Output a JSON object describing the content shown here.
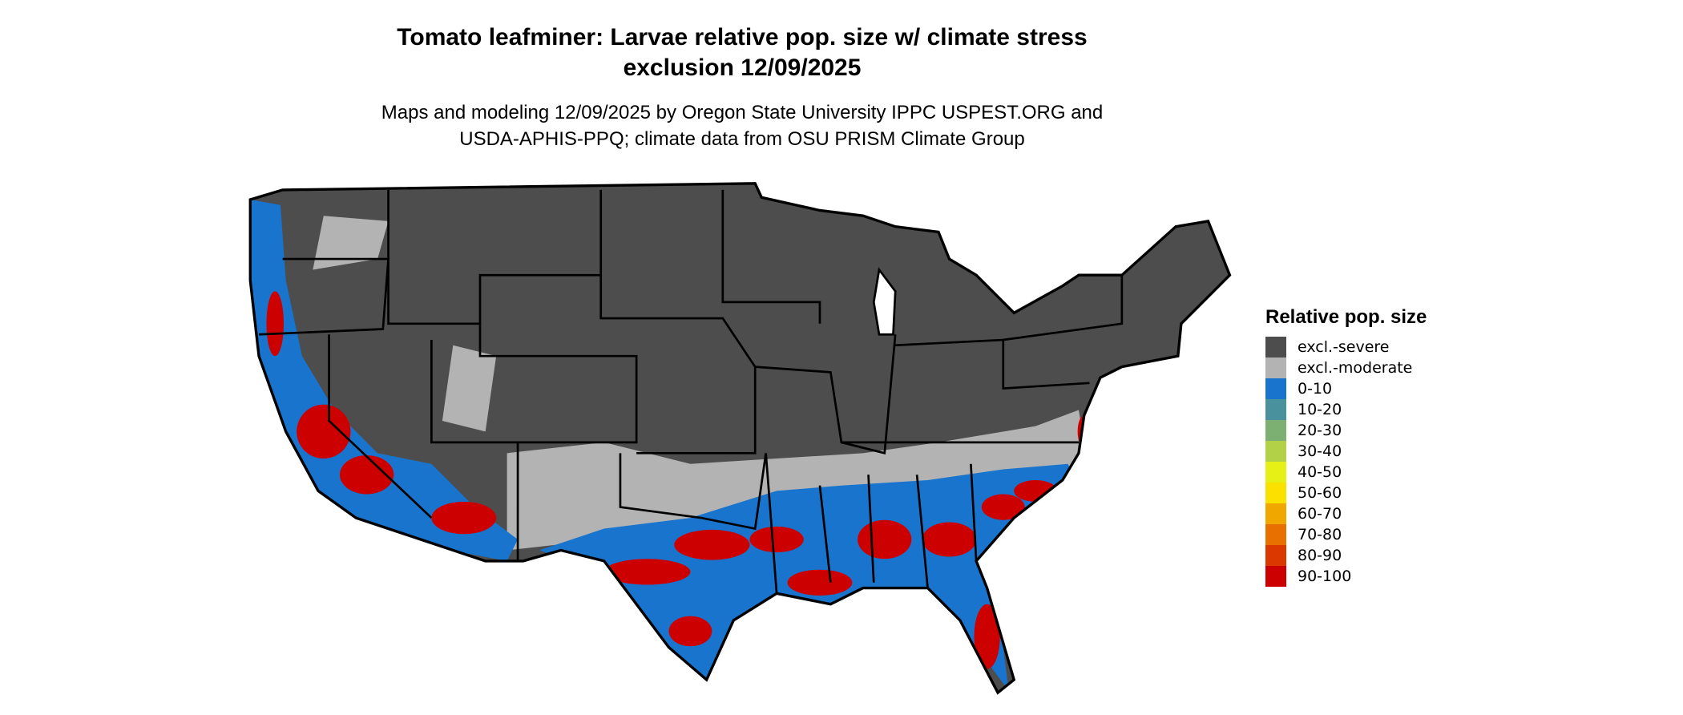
{
  "title_line1": "Tomato leafminer: Larvae relative pop. size w/ climate stress",
  "title_line2": "exclusion 12/09/2025",
  "subtitle_line1": "Maps and modeling 12/09/2025 by Oregon State University IPPC USPEST.ORG and",
  "subtitle_line2": "USDA-APHIS-PPQ; climate data from OSU PRISM Climate Group",
  "legend": {
    "title": "Relative pop. size",
    "placement": "right",
    "items": [
      {
        "label": "excl.-severe",
        "color": "#4d4d4d"
      },
      {
        "label": "excl.-moderate",
        "color": "#b3b3b3"
      },
      {
        "label": "0-10",
        "color": "#1874cd"
      },
      {
        "label": "10-20",
        "color": "#4a919e"
      },
      {
        "label": "20-30",
        "color": "#7caf72"
      },
      {
        "label": "30-40",
        "color": "#b2d147"
      },
      {
        "label": "40-50",
        "color": "#e6f016"
      },
      {
        "label": "50-60",
        "color": "#fae100"
      },
      {
        "label": "60-70",
        "color": "#f0a800"
      },
      {
        "label": "70-80",
        "color": "#e87000"
      },
      {
        "label": "80-90",
        "color": "#db3800"
      },
      {
        "label": "90-100",
        "color": "#cd0000"
      }
    ]
  },
  "map": {
    "region": "Contiguous United States",
    "boundaries": "state borders"
  }
}
